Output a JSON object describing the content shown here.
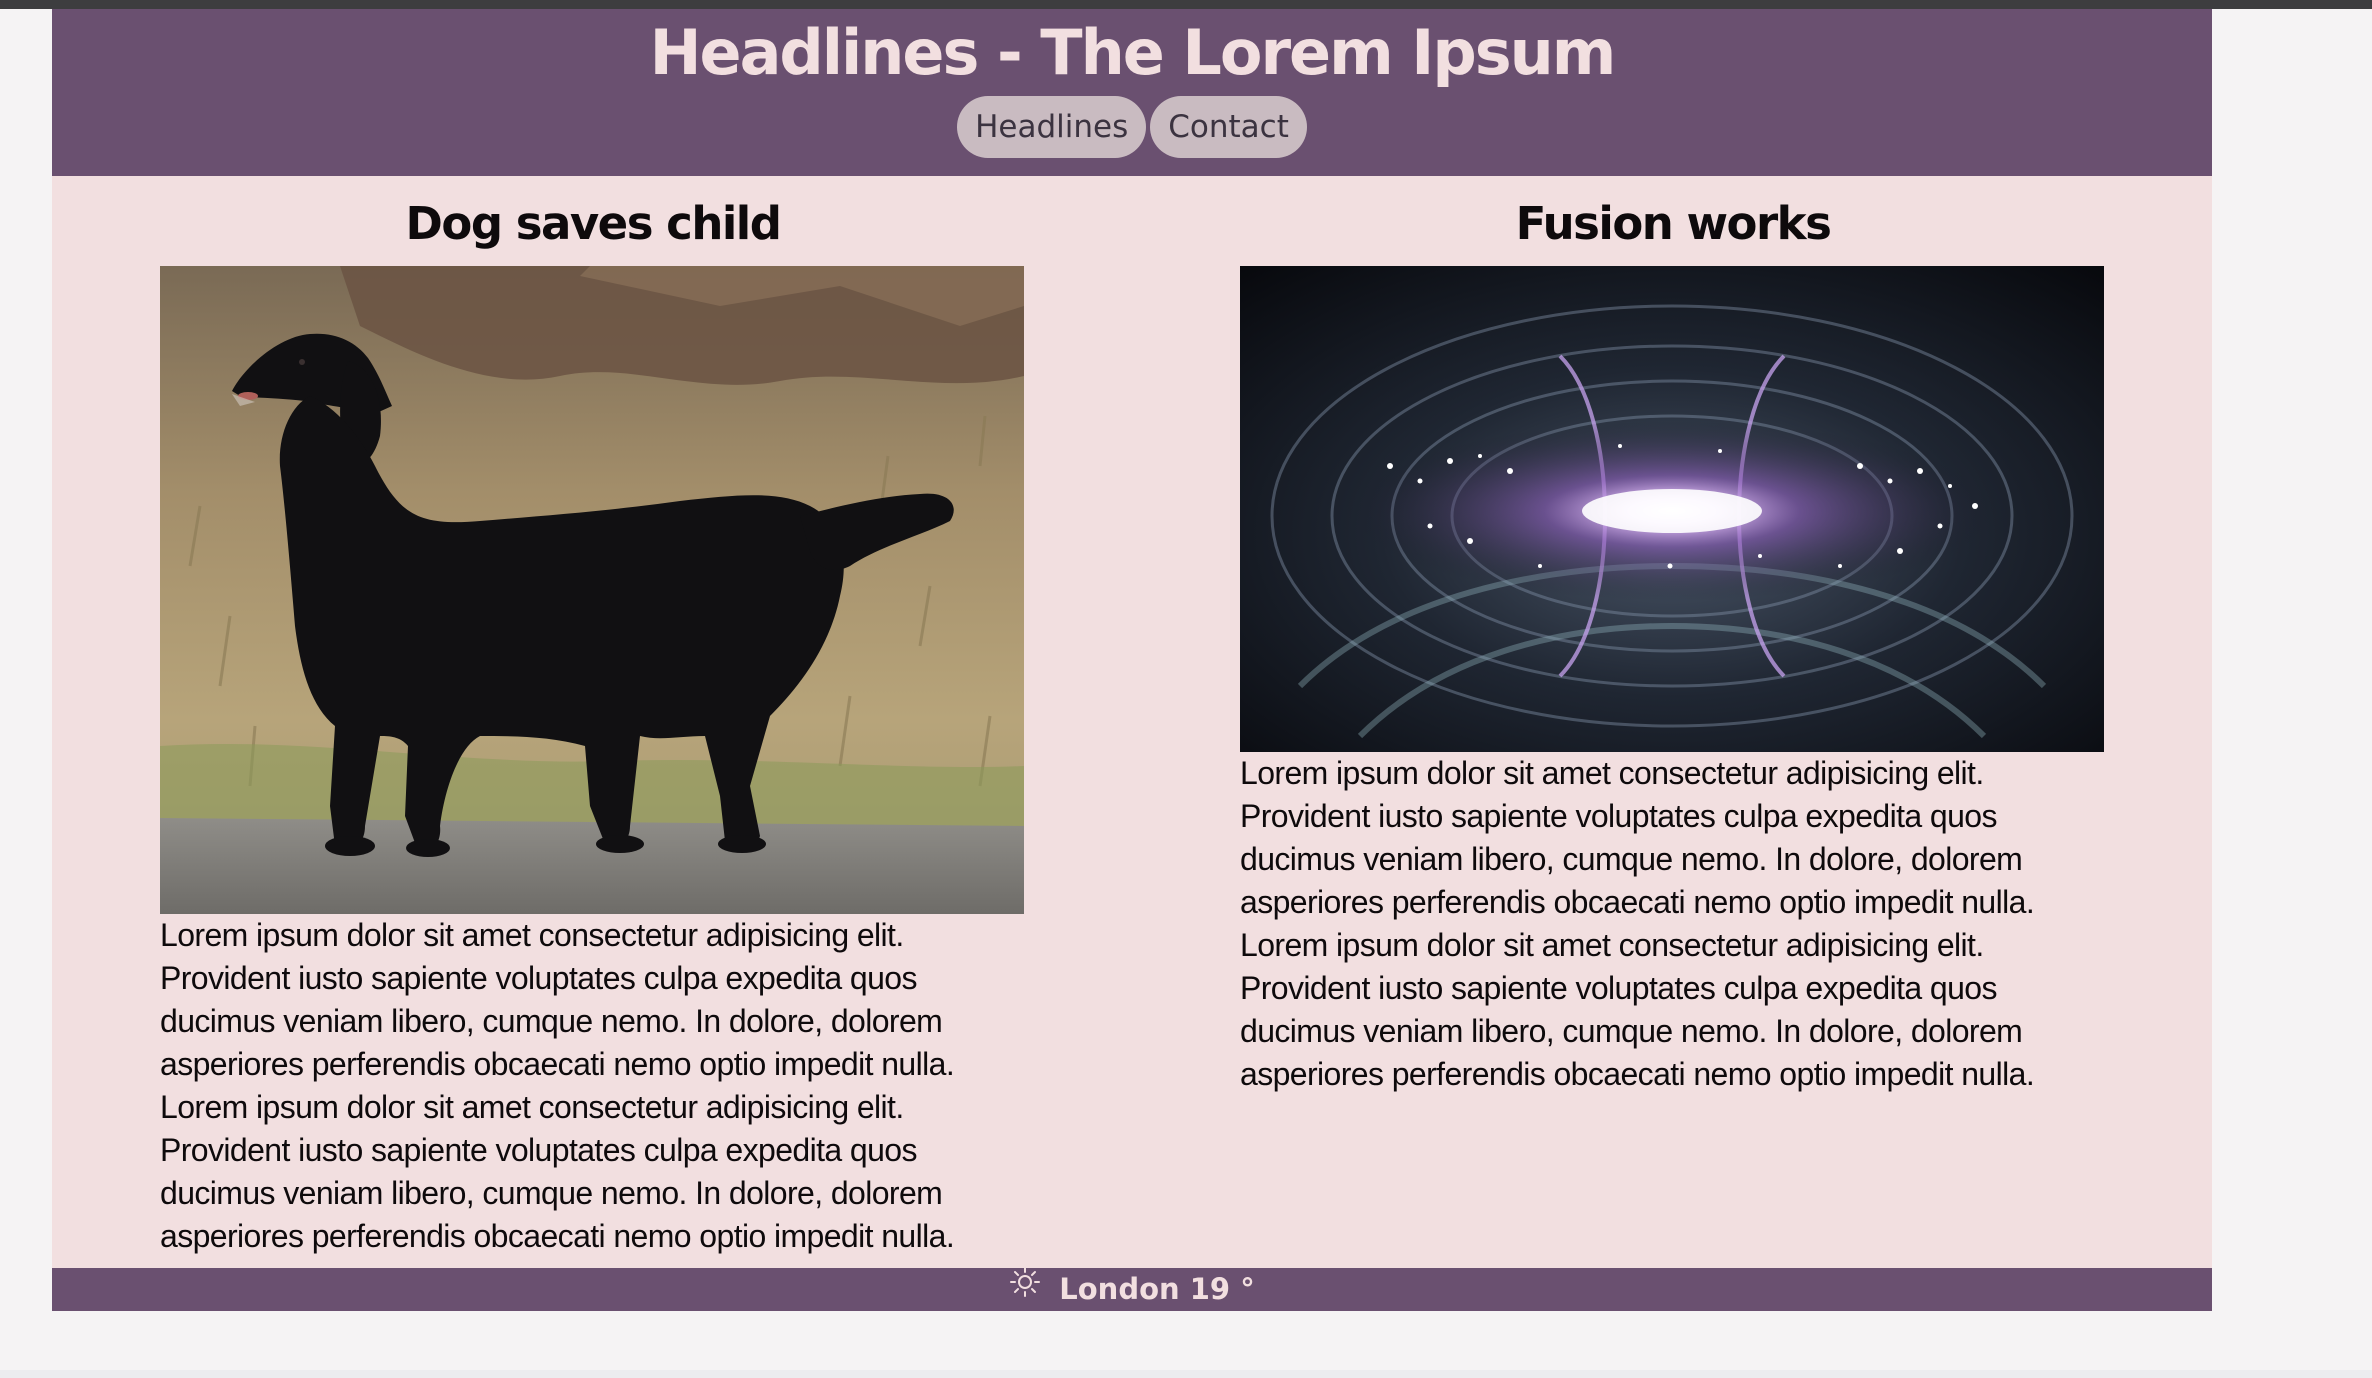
{
  "header": {
    "title": "Headlines - The Lorem Ipsum",
    "nav": [
      {
        "label": "Headlines"
      },
      {
        "label": "Contact"
      }
    ]
  },
  "articles": [
    {
      "title": "Dog saves child",
      "image": "black flat-coated retriever dog standing on a path beside dry grass",
      "paragraphs": [
        "Lorem ipsum dolor sit amet consectetur adipisicing elit. Provident iusto sapiente voluptates culpa expedita quos ducimus veniam libero, cumque nemo. In dolore, dolorem asperiores perferendis obcaecati nemo optio impedit nulla.",
        "Lorem ipsum dolor sit amet consectetur adipisicing elit. Provident iusto sapiente voluptates culpa expedita quos ducimus veniam libero, cumque nemo. In dolore, dolorem asperiores perferendis obcaecati nemo optio impedit nulla."
      ]
    },
    {
      "title": "Fusion works",
      "image": "glowing purple plasma inside a fusion reactor chamber",
      "paragraphs": [
        "Lorem ipsum dolor sit amet consectetur adipisicing elit. Provident iusto sapiente voluptates culpa expedita quos ducimus veniam libero, cumque nemo. In dolore, dolorem asperiores perferendis obcaecati nemo optio impedit nulla.",
        "Lorem ipsum dolor sit amet consectetur adipisicing elit. Provident iusto sapiente voluptates culpa expedita quos ducimus veniam libero, cumque nemo. In dolore, dolorem asperiores perferendis obcaecati nemo optio impedit nulla."
      ]
    }
  ],
  "footer": {
    "weather_icon": "sun-icon",
    "weather_text": "London 19 °"
  },
  "colors": {
    "header_bg": "#6a5070",
    "content_bg": "#f2dfe0",
    "nav_button_bg": "#c9bbc1"
  }
}
